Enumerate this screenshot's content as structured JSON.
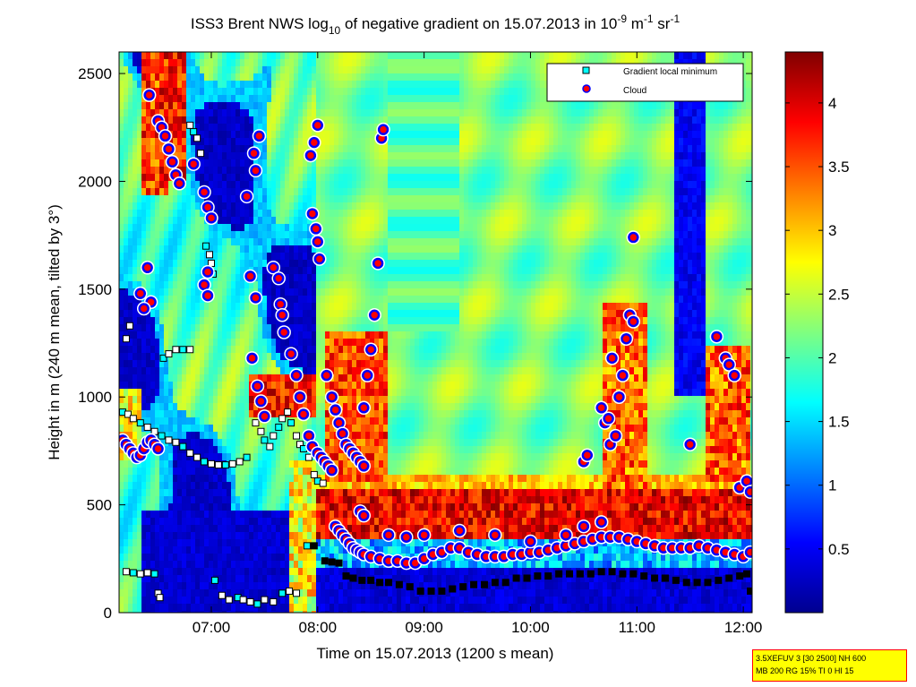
{
  "chart_data": {
    "type": "heatmap",
    "title": {
      "part1": "ISS3 Brent NWS log",
      "sub": "10",
      "part2": " of negative gradient on 15.07.2013 in 10",
      "sup1": "-9",
      "part3": " m",
      "sup2": "-1",
      "part4": " sr",
      "sup3": "-1"
    },
    "xlabel": "Time on 15.07.2013 (1200 s mean)",
    "ylabel": "Height in m (240 m mean, tilted by 3°)",
    "xlim": [
      "06:08",
      "12:05"
    ],
    "ylim": [
      0,
      2600
    ],
    "x_ticks": [
      "07:00",
      "08:00",
      "09:00",
      "10:00",
      "11:00",
      "12:00"
    ],
    "y_ticks": [
      0,
      500,
      1000,
      1500,
      2000,
      2500
    ],
    "colorbar": {
      "colormap": "jet",
      "range": [
        0,
        4.4
      ],
      "ticks": [
        0.5,
        1,
        1.5,
        2,
        2.5,
        3,
        3.5,
        4
      ]
    },
    "legend": {
      "placement": "top-right",
      "entries": [
        {
          "label": "Gradient local minimum",
          "marker": "square",
          "color": "#00ffff"
        },
        {
          "label": "Cloud",
          "marker": "circle",
          "color": "#ff0000"
        }
      ]
    },
    "series": [
      {
        "name": "Gradient local minimum",
        "points": [
          [
            "06:10",
            930
          ],
          [
            "06:13",
            920
          ],
          [
            "06:16",
            900
          ],
          [
            "06:20",
            880
          ],
          [
            "06:24",
            860
          ],
          [
            "06:28",
            840
          ],
          [
            "06:32",
            820
          ],
          [
            "06:36",
            800
          ],
          [
            "06:40",
            790
          ],
          [
            "06:44",
            770
          ],
          [
            "06:48",
            740
          ],
          [
            "06:52",
            720
          ],
          [
            "06:56",
            700
          ],
          [
            "07:00",
            690
          ],
          [
            "07:04",
            685
          ],
          [
            "07:08",
            685
          ],
          [
            "07:12",
            690
          ],
          [
            "07:16",
            700
          ],
          [
            "07:20",
            720
          ],
          [
            "06:12",
            1270
          ],
          [
            "06:14",
            1330
          ],
          [
            "06:33",
            1180
          ],
          [
            "06:36",
            1200
          ],
          [
            "06:40",
            1220
          ],
          [
            "06:44",
            1220
          ],
          [
            "06:48",
            1220
          ],
          [
            "06:48",
            2260
          ],
          [
            "06:50",
            2230
          ],
          [
            "06:52",
            2200
          ],
          [
            "06:54",
            2130
          ],
          [
            "06:57",
            1700
          ],
          [
            "06:59",
            1660
          ],
          [
            "07:00",
            1620
          ],
          [
            "07:01",
            1570
          ],
          [
            "07:25",
            880
          ],
          [
            "07:28",
            840
          ],
          [
            "07:30",
            800
          ],
          [
            "07:33",
            770
          ],
          [
            "07:35",
            820
          ],
          [
            "07:38",
            860
          ],
          [
            "07:40",
            900
          ],
          [
            "07:43",
            930
          ],
          [
            "07:45",
            880
          ],
          [
            "07:48",
            820
          ],
          [
            "07:50",
            780
          ],
          [
            "07:52",
            760
          ],
          [
            "07:55",
            720
          ],
          [
            "07:58",
            640
          ],
          [
            "08:00",
            610
          ],
          [
            "08:03",
            600
          ],
          [
            "06:12",
            190
          ],
          [
            "06:16",
            185
          ],
          [
            "06:20",
            180
          ],
          [
            "06:24",
            185
          ],
          [
            "06:28",
            180
          ],
          [
            "06:30",
            90
          ],
          [
            "06:31",
            70
          ],
          [
            "07:02",
            150
          ],
          [
            "07:06",
            80
          ],
          [
            "07:10",
            60
          ],
          [
            "07:15",
            70
          ],
          [
            "07:18",
            60
          ],
          [
            "07:22",
            50
          ],
          [
            "07:26",
            40
          ],
          [
            "07:30",
            60
          ],
          [
            "07:35",
            50
          ],
          [
            "07:40",
            90
          ],
          [
            "07:44",
            100
          ],
          [
            "07:48",
            90
          ],
          [
            "07:54",
            310
          ],
          [
            "07:58",
            310
          ],
          [
            "08:04",
            240
          ],
          [
            "08:08",
            235
          ],
          [
            "08:12",
            230
          ],
          [
            "08:16",
            170
          ],
          [
            "08:20",
            160
          ],
          [
            "08:25",
            150
          ],
          [
            "08:30",
            150
          ],
          [
            "08:35",
            140
          ],
          [
            "08:40",
            140
          ],
          [
            "08:46",
            130
          ],
          [
            "08:52",
            120
          ],
          [
            "08:58",
            100
          ],
          [
            "09:04",
            100
          ],
          [
            "09:10",
            100
          ],
          [
            "09:16",
            110
          ],
          [
            "09:22",
            120
          ],
          [
            "09:28",
            130
          ],
          [
            "09:34",
            130
          ],
          [
            "09:40",
            140
          ],
          [
            "09:46",
            140
          ],
          [
            "09:52",
            160
          ],
          [
            "09:58",
            160
          ],
          [
            "10:04",
            170
          ],
          [
            "10:10",
            170
          ],
          [
            "10:16",
            180
          ],
          [
            "10:22",
            180
          ],
          [
            "10:28",
            180
          ],
          [
            "10:34",
            180
          ],
          [
            "10:40",
            190
          ],
          [
            "10:46",
            190
          ],
          [
            "10:52",
            180
          ],
          [
            "10:58",
            180
          ],
          [
            "11:04",
            170
          ],
          [
            "11:10",
            160
          ],
          [
            "11:16",
            160
          ],
          [
            "11:22",
            150
          ],
          [
            "11:28",
            140
          ],
          [
            "11:34",
            140
          ],
          [
            "11:40",
            140
          ],
          [
            "11:46",
            150
          ],
          [
            "11:52",
            160
          ],
          [
            "11:58",
            170
          ],
          [
            "12:02",
            180
          ],
          [
            "12:04",
            100
          ]
        ]
      },
      {
        "name": "Cloud",
        "points": [
          [
            "06:10",
            800
          ],
          [
            "06:12",
            780
          ],
          [
            "06:14",
            760
          ],
          [
            "06:16",
            740
          ],
          [
            "06:18",
            720
          ],
          [
            "06:20",
            730
          ],
          [
            "06:22",
            760
          ],
          [
            "06:24",
            790
          ],
          [
            "06:26",
            800
          ],
          [
            "06:28",
            780
          ],
          [
            "06:30",
            760
          ],
          [
            "06:25",
            2400
          ],
          [
            "06:30",
            2280
          ],
          [
            "06:32",
            2250
          ],
          [
            "06:34",
            2210
          ],
          [
            "06:36",
            2150
          ],
          [
            "06:38",
            2090
          ],
          [
            "06:40",
            2030
          ],
          [
            "06:42",
            1990
          ],
          [
            "06:24",
            1600
          ],
          [
            "06:20",
            1480
          ],
          [
            "06:26",
            1440
          ],
          [
            "06:22",
            1410
          ],
          [
            "06:50",
            2080
          ],
          [
            "06:56",
            1950
          ],
          [
            "06:58",
            1880
          ],
          [
            "07:00",
            1830
          ],
          [
            "06:58",
            1580
          ],
          [
            "06:56",
            1520
          ],
          [
            "06:58",
            1470
          ],
          [
            "07:20",
            1930
          ],
          [
            "07:24",
            2130
          ],
          [
            "07:27",
            2210
          ],
          [
            "07:25",
            2050
          ],
          [
            "07:22",
            1560
          ],
          [
            "07:25",
            1460
          ],
          [
            "07:23",
            1180
          ],
          [
            "07:26",
            1050
          ],
          [
            "07:28",
            980
          ],
          [
            "07:30",
            910
          ],
          [
            "07:35",
            1600
          ],
          [
            "07:38",
            1550
          ],
          [
            "07:39",
            1430
          ],
          [
            "07:40",
            1380
          ],
          [
            "07:41",
            1300
          ],
          [
            "07:45",
            1200
          ],
          [
            "07:48",
            1100
          ],
          [
            "07:50",
            1000
          ],
          [
            "07:52",
            920
          ],
          [
            "07:55",
            820
          ],
          [
            "07:57",
            770
          ],
          [
            "08:00",
            740
          ],
          [
            "08:02",
            720
          ],
          [
            "08:04",
            700
          ],
          [
            "08:06",
            680
          ],
          [
            "08:08",
            660
          ],
          [
            "08:00",
            2260
          ],
          [
            "07:58",
            2180
          ],
          [
            "07:56",
            2120
          ],
          [
            "07:57",
            1850
          ],
          [
            "07:59",
            1780
          ],
          [
            "08:00",
            1720
          ],
          [
            "08:01",
            1640
          ],
          [
            "08:05",
            1100
          ],
          [
            "08:08",
            1000
          ],
          [
            "08:10",
            940
          ],
          [
            "08:12",
            880
          ],
          [
            "08:14",
            830
          ],
          [
            "08:16",
            780
          ],
          [
            "08:18",
            760
          ],
          [
            "08:20",
            740
          ],
          [
            "08:22",
            720
          ],
          [
            "08:24",
            700
          ],
          [
            "08:26",
            680
          ],
          [
            "08:34",
            1620
          ],
          [
            "08:32",
            1380
          ],
          [
            "08:30",
            1220
          ],
          [
            "08:28",
            1100
          ],
          [
            "08:26",
            950
          ],
          [
            "08:36",
            2200
          ],
          [
            "08:37",
            2240
          ],
          [
            "08:24",
            470
          ],
          [
            "08:26",
            450
          ],
          [
            "08:10",
            400
          ],
          [
            "08:12",
            380
          ],
          [
            "08:14",
            360
          ],
          [
            "08:16",
            340
          ],
          [
            "08:18",
            320
          ],
          [
            "08:20",
            300
          ],
          [
            "08:22",
            290
          ],
          [
            "08:24",
            280
          ],
          [
            "08:26",
            270
          ],
          [
            "08:30",
            260
          ],
          [
            "08:35",
            250
          ],
          [
            "08:40",
            240
          ],
          [
            "08:45",
            240
          ],
          [
            "08:50",
            230
          ],
          [
            "08:55",
            230
          ],
          [
            "09:00",
            250
          ],
          [
            "09:05",
            270
          ],
          [
            "09:10",
            280
          ],
          [
            "09:15",
            300
          ],
          [
            "09:20",
            300
          ],
          [
            "09:25",
            280
          ],
          [
            "09:30",
            270
          ],
          [
            "09:35",
            260
          ],
          [
            "09:40",
            260
          ],
          [
            "09:45",
            260
          ],
          [
            "09:50",
            270
          ],
          [
            "09:55",
            270
          ],
          [
            "10:00",
            280
          ],
          [
            "10:05",
            280
          ],
          [
            "10:10",
            290
          ],
          [
            "10:15",
            300
          ],
          [
            "10:20",
            310
          ],
          [
            "10:25",
            320
          ],
          [
            "10:30",
            330
          ],
          [
            "10:35",
            340
          ],
          [
            "10:40",
            350
          ],
          [
            "10:45",
            350
          ],
          [
            "10:50",
            350
          ],
          [
            "10:55",
            340
          ],
          [
            "11:00",
            330
          ],
          [
            "11:05",
            320
          ],
          [
            "11:10",
            310
          ],
          [
            "11:15",
            300
          ],
          [
            "11:20",
            300
          ],
          [
            "11:25",
            300
          ],
          [
            "11:30",
            300
          ],
          [
            "11:35",
            310
          ],
          [
            "11:40",
            300
          ],
          [
            "11:45",
            290
          ],
          [
            "11:50",
            280
          ],
          [
            "11:55",
            270
          ],
          [
            "12:00",
            260
          ],
          [
            "12:04",
            280
          ],
          [
            "08:40",
            360
          ],
          [
            "08:50",
            350
          ],
          [
            "09:00",
            360
          ],
          [
            "09:20",
            380
          ],
          [
            "09:40",
            360
          ],
          [
            "10:00",
            330
          ],
          [
            "10:20",
            360
          ],
          [
            "10:30",
            400
          ],
          [
            "10:40",
            420
          ],
          [
            "10:30",
            700
          ],
          [
            "10:32",
            730
          ],
          [
            "10:40",
            950
          ],
          [
            "10:42",
            880
          ],
          [
            "10:45",
            780
          ],
          [
            "10:48",
            820
          ],
          [
            "10:50",
            1000
          ],
          [
            "10:52",
            1100
          ],
          [
            "10:54",
            1270
          ],
          [
            "10:56",
            1380
          ],
          [
            "10:58",
            1350
          ],
          [
            "10:58",
            1740
          ],
          [
            "10:46",
            1180
          ],
          [
            "10:44",
            900
          ],
          [
            "11:30",
            780
          ],
          [
            "11:45",
            1280
          ],
          [
            "11:50",
            1180
          ],
          [
            "11:52",
            1150
          ],
          [
            "11:55",
            1100
          ],
          [
            "11:58",
            580
          ],
          [
            "12:02",
            610
          ],
          [
            "12:04",
            560
          ]
        ]
      }
    ],
    "grid": false
  },
  "info_box": {
    "line1": "3.5XEFUV 3 [30 2500] NH 600",
    "line2": "MB 200 RG 15% TI 0 HI 15"
  },
  "colors": {
    "gradient_min_marker_fill": "#00ffff",
    "gradient_min_marker_fill_alt": "#ffffff",
    "cloud_marker_fill": "#ff0000",
    "cloud_marker_edge": "#0000ff",
    "info_box_bg": "#ffff00",
    "info_box_border": "#ff0000"
  }
}
